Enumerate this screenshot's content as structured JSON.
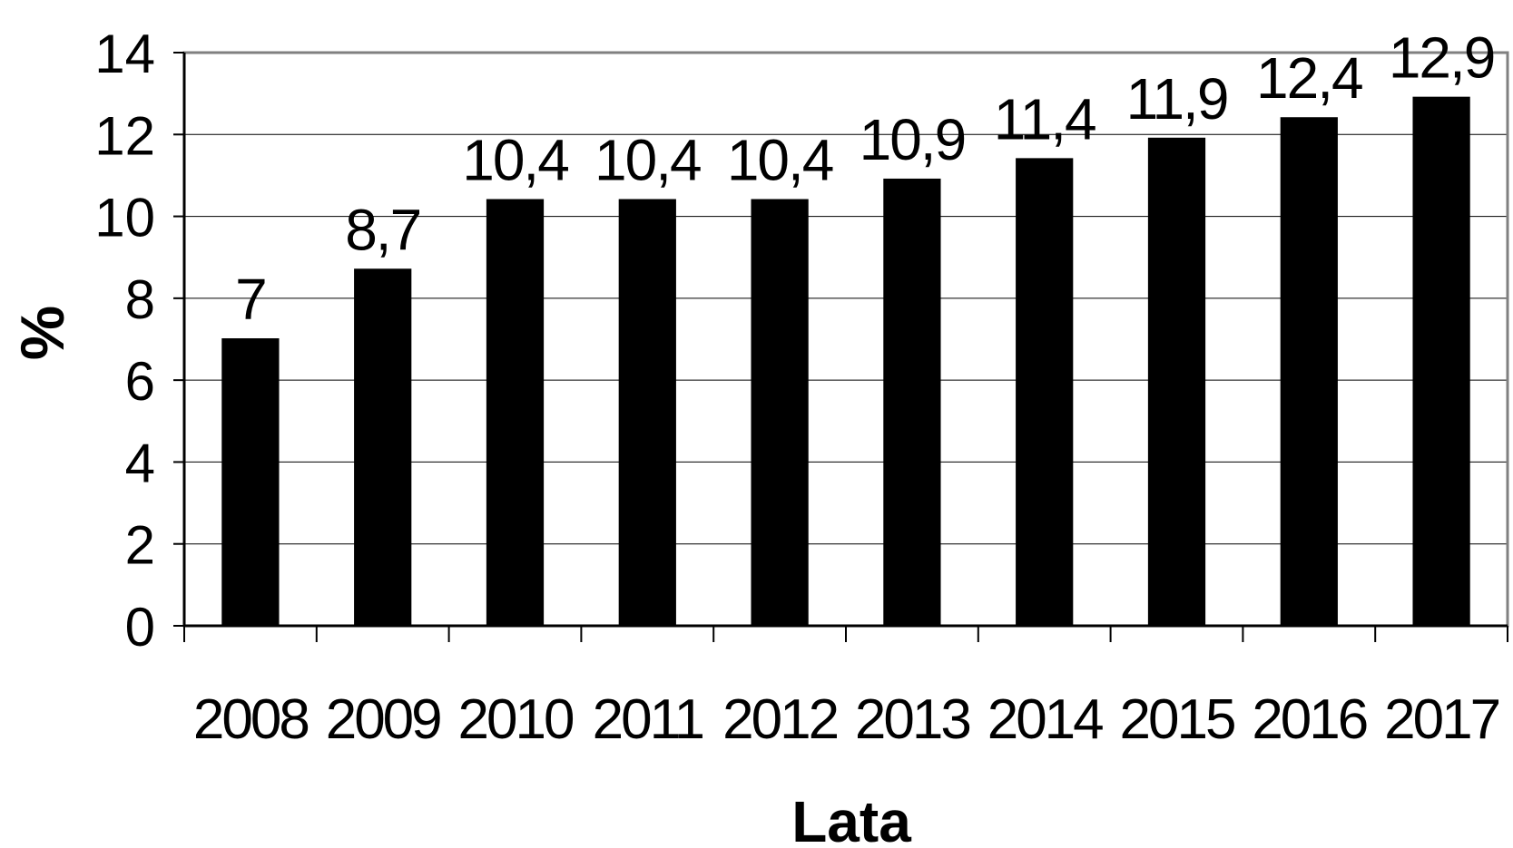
{
  "chart_data": {
    "type": "bar",
    "title": "",
    "xlabel": "Lata",
    "ylabel": "%",
    "categories": [
      "2008",
      "2009",
      "2010",
      "2011",
      "2012",
      "2013",
      "2014",
      "2015",
      "2016",
      "2017"
    ],
    "values": [
      7,
      8.7,
      10.4,
      10.4,
      10.4,
      10.9,
      11.4,
      11.9,
      12.4,
      12.9
    ],
    "value_labels": [
      "7",
      "8,7",
      "10,4",
      "10,4",
      "10,4",
      "10,9",
      "11,4",
      "11,9",
      "12,4",
      "12,9"
    ],
    "yticks": [
      0,
      2,
      4,
      6,
      8,
      10,
      12,
      14
    ],
    "ylim": [
      0,
      14
    ],
    "grid": true,
    "legend": "none",
    "colors": {
      "bar": "#000000",
      "grid": "#000000",
      "frame": "#808080",
      "axis": "#000000"
    }
  }
}
